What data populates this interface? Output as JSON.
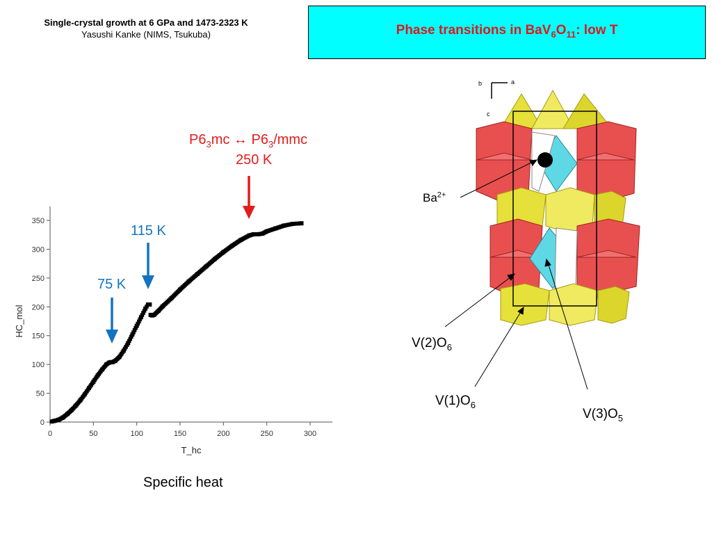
{
  "header": {
    "line1": "Single-crystal growth at 6 GPa and 1473-2323 K",
    "line2": "Yasushi Kanke (NIMS, Tsukuba)"
  },
  "title": {
    "prefix": "Phase transitions in BaV",
    "sub1": "6",
    "mid": "O",
    "sub2": "11",
    "suffix": ": low T"
  },
  "annotations": {
    "transition_250": {
      "p1": "P6",
      "s1": "3",
      "p2": "mc ",
      "arrow": "↔",
      "p3": " P6",
      "s2": "3",
      "p4": "/mmc",
      "temp": "250 K"
    },
    "transition_115": "115 K",
    "transition_75": "75 K"
  },
  "caption": "Specific heat",
  "structure": {
    "axis_a": "a",
    "axis_b": "b",
    "axis_c": "c",
    "ba": {
      "base": "Ba",
      "sup": "2+"
    },
    "v2": {
      "base": "V(2)O",
      "sub": "6"
    },
    "v1": {
      "base": "V(1)O",
      "sub": "6"
    },
    "v3": {
      "base": "V(3)O",
      "sub": "5"
    }
  },
  "colors": {
    "title_text": "#e01818",
    "title_bg": "#00ffff",
    "arrow_red": "#e31c1c",
    "arrow_blue": "#1473c0",
    "v2_octahedra": "#e85050",
    "v1_octahedra": "#e6e03a",
    "v3_bipyramid": "#5fd8e6"
  },
  "chart_data": {
    "type": "scatter",
    "xlabel": "T_hc",
    "ylabel": "HC_mol",
    "xlim": [
      0,
      300
    ],
    "ylim": [
      0,
      350
    ],
    "xticks": [
      0,
      50,
      100,
      150,
      200,
      250,
      300
    ],
    "yticks": [
      0,
      50,
      100,
      150,
      200,
      250,
      300,
      350
    ],
    "series": [
      {
        "x": [
          2,
          5,
          10,
          15,
          20,
          25,
          30,
          35,
          40,
          45,
          50,
          55,
          60,
          65,
          68,
          70,
          72,
          75,
          80,
          85,
          90,
          95,
          100,
          105,
          110,
          113,
          115,
          116,
          118,
          120,
          125,
          130,
          140,
          150,
          160,
          170,
          180,
          190,
          200,
          210,
          220,
          230,
          235,
          240,
          245,
          250,
          260,
          270,
          280,
          290
        ],
        "y": [
          1,
          2,
          4,
          8,
          14,
          21,
          29,
          38,
          48,
          59,
          70,
          81,
          91,
          100,
          103,
          104,
          104,
          106,
          113,
          124,
          137,
          152,
          167,
          182,
          197,
          204,
          204,
          186,
          185,
          186,
          193,
          201,
          215,
          230,
          244,
          257,
          270,
          283,
          295,
          306,
          316,
          324,
          326,
          326,
          327,
          331,
          336,
          341,
          344,
          345
        ]
      }
    ]
  }
}
